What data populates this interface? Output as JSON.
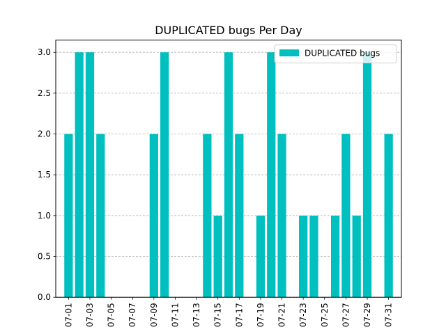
{
  "chart_data": {
    "type": "bar",
    "title": "DUPLICATED bugs Per Day",
    "xlabel": "",
    "ylabel": "",
    "categories": [
      "07-01",
      "07-02",
      "07-03",
      "07-04",
      "07-05",
      "07-06",
      "07-07",
      "07-08",
      "07-09",
      "07-10",
      "07-11",
      "07-12",
      "07-13",
      "07-14",
      "07-15",
      "07-16",
      "07-17",
      "07-18",
      "07-19",
      "07-20",
      "07-21",
      "07-22",
      "07-23",
      "07-24",
      "07-25",
      "07-26",
      "07-27",
      "07-28",
      "07-29",
      "07-30",
      "07-31"
    ],
    "x_tick_labels": [
      "07-01",
      "07-03",
      "07-05",
      "07-07",
      "07-09",
      "07-11",
      "07-13",
      "07-15",
      "07-17",
      "07-19",
      "07-21",
      "07-23",
      "07-25",
      "07-27",
      "07-29",
      "07-31"
    ],
    "series": [
      {
        "name": "DUPLICATED bugs",
        "color": "#00bfbf",
        "values": [
          2,
          3,
          3,
          2,
          0,
          0,
          0,
          0,
          2,
          3,
          0,
          0,
          0,
          2,
          1,
          3,
          2,
          0,
          1,
          3,
          2,
          0,
          1,
          1,
          0,
          1,
          2,
          1,
          3,
          0,
          2
        ]
      }
    ],
    "ylim": [
      0,
      3.15
    ],
    "y_ticks": [
      0.0,
      0.5,
      1.0,
      1.5,
      2.0,
      2.5,
      3.0
    ],
    "y_tick_labels": [
      "0.0",
      "0.5",
      "1.0",
      "1.5",
      "2.0",
      "2.5",
      "3.0"
    ],
    "grid": "y-dashed",
    "legend_position": "top-right"
  }
}
